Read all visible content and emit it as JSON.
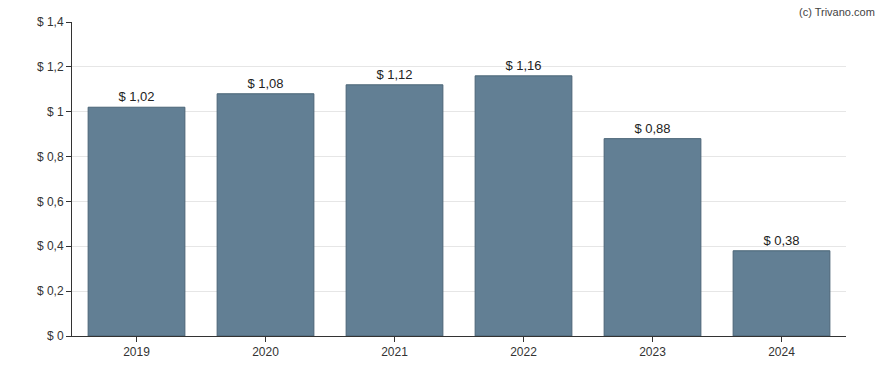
{
  "chart_data": {
    "type": "bar",
    "categories": [
      "2019",
      "2020",
      "2021",
      "2022",
      "2023",
      "2024"
    ],
    "values": [
      1.02,
      1.08,
      1.12,
      1.16,
      0.88,
      0.38
    ],
    "value_labels": [
      "$ 1,02",
      "$ 1,08",
      "$ 1,12",
      "$ 1,16",
      "$ 0,88",
      "$ 0,38"
    ],
    "data_labels": true,
    "color": "#627f94",
    "ylim": [
      0,
      1.4
    ],
    "yticks": [
      {
        "value": 0,
        "label": "$ 0"
      },
      {
        "value": 0.2,
        "label": "$ 0,2"
      },
      {
        "value": 0.4,
        "label": "$ 0,4"
      },
      {
        "value": 0.6,
        "label": "$ 0,6"
      },
      {
        "value": 0.8,
        "label": "$ 0,8"
      },
      {
        "value": 1,
        "label": "$ 1"
      },
      {
        "value": 1.2,
        "label": "$ 1,2"
      },
      {
        "value": 1.4,
        "label": "$ 1,4"
      }
    ],
    "grid": true,
    "annotations": [
      "(c) Trivano.com"
    ]
  }
}
